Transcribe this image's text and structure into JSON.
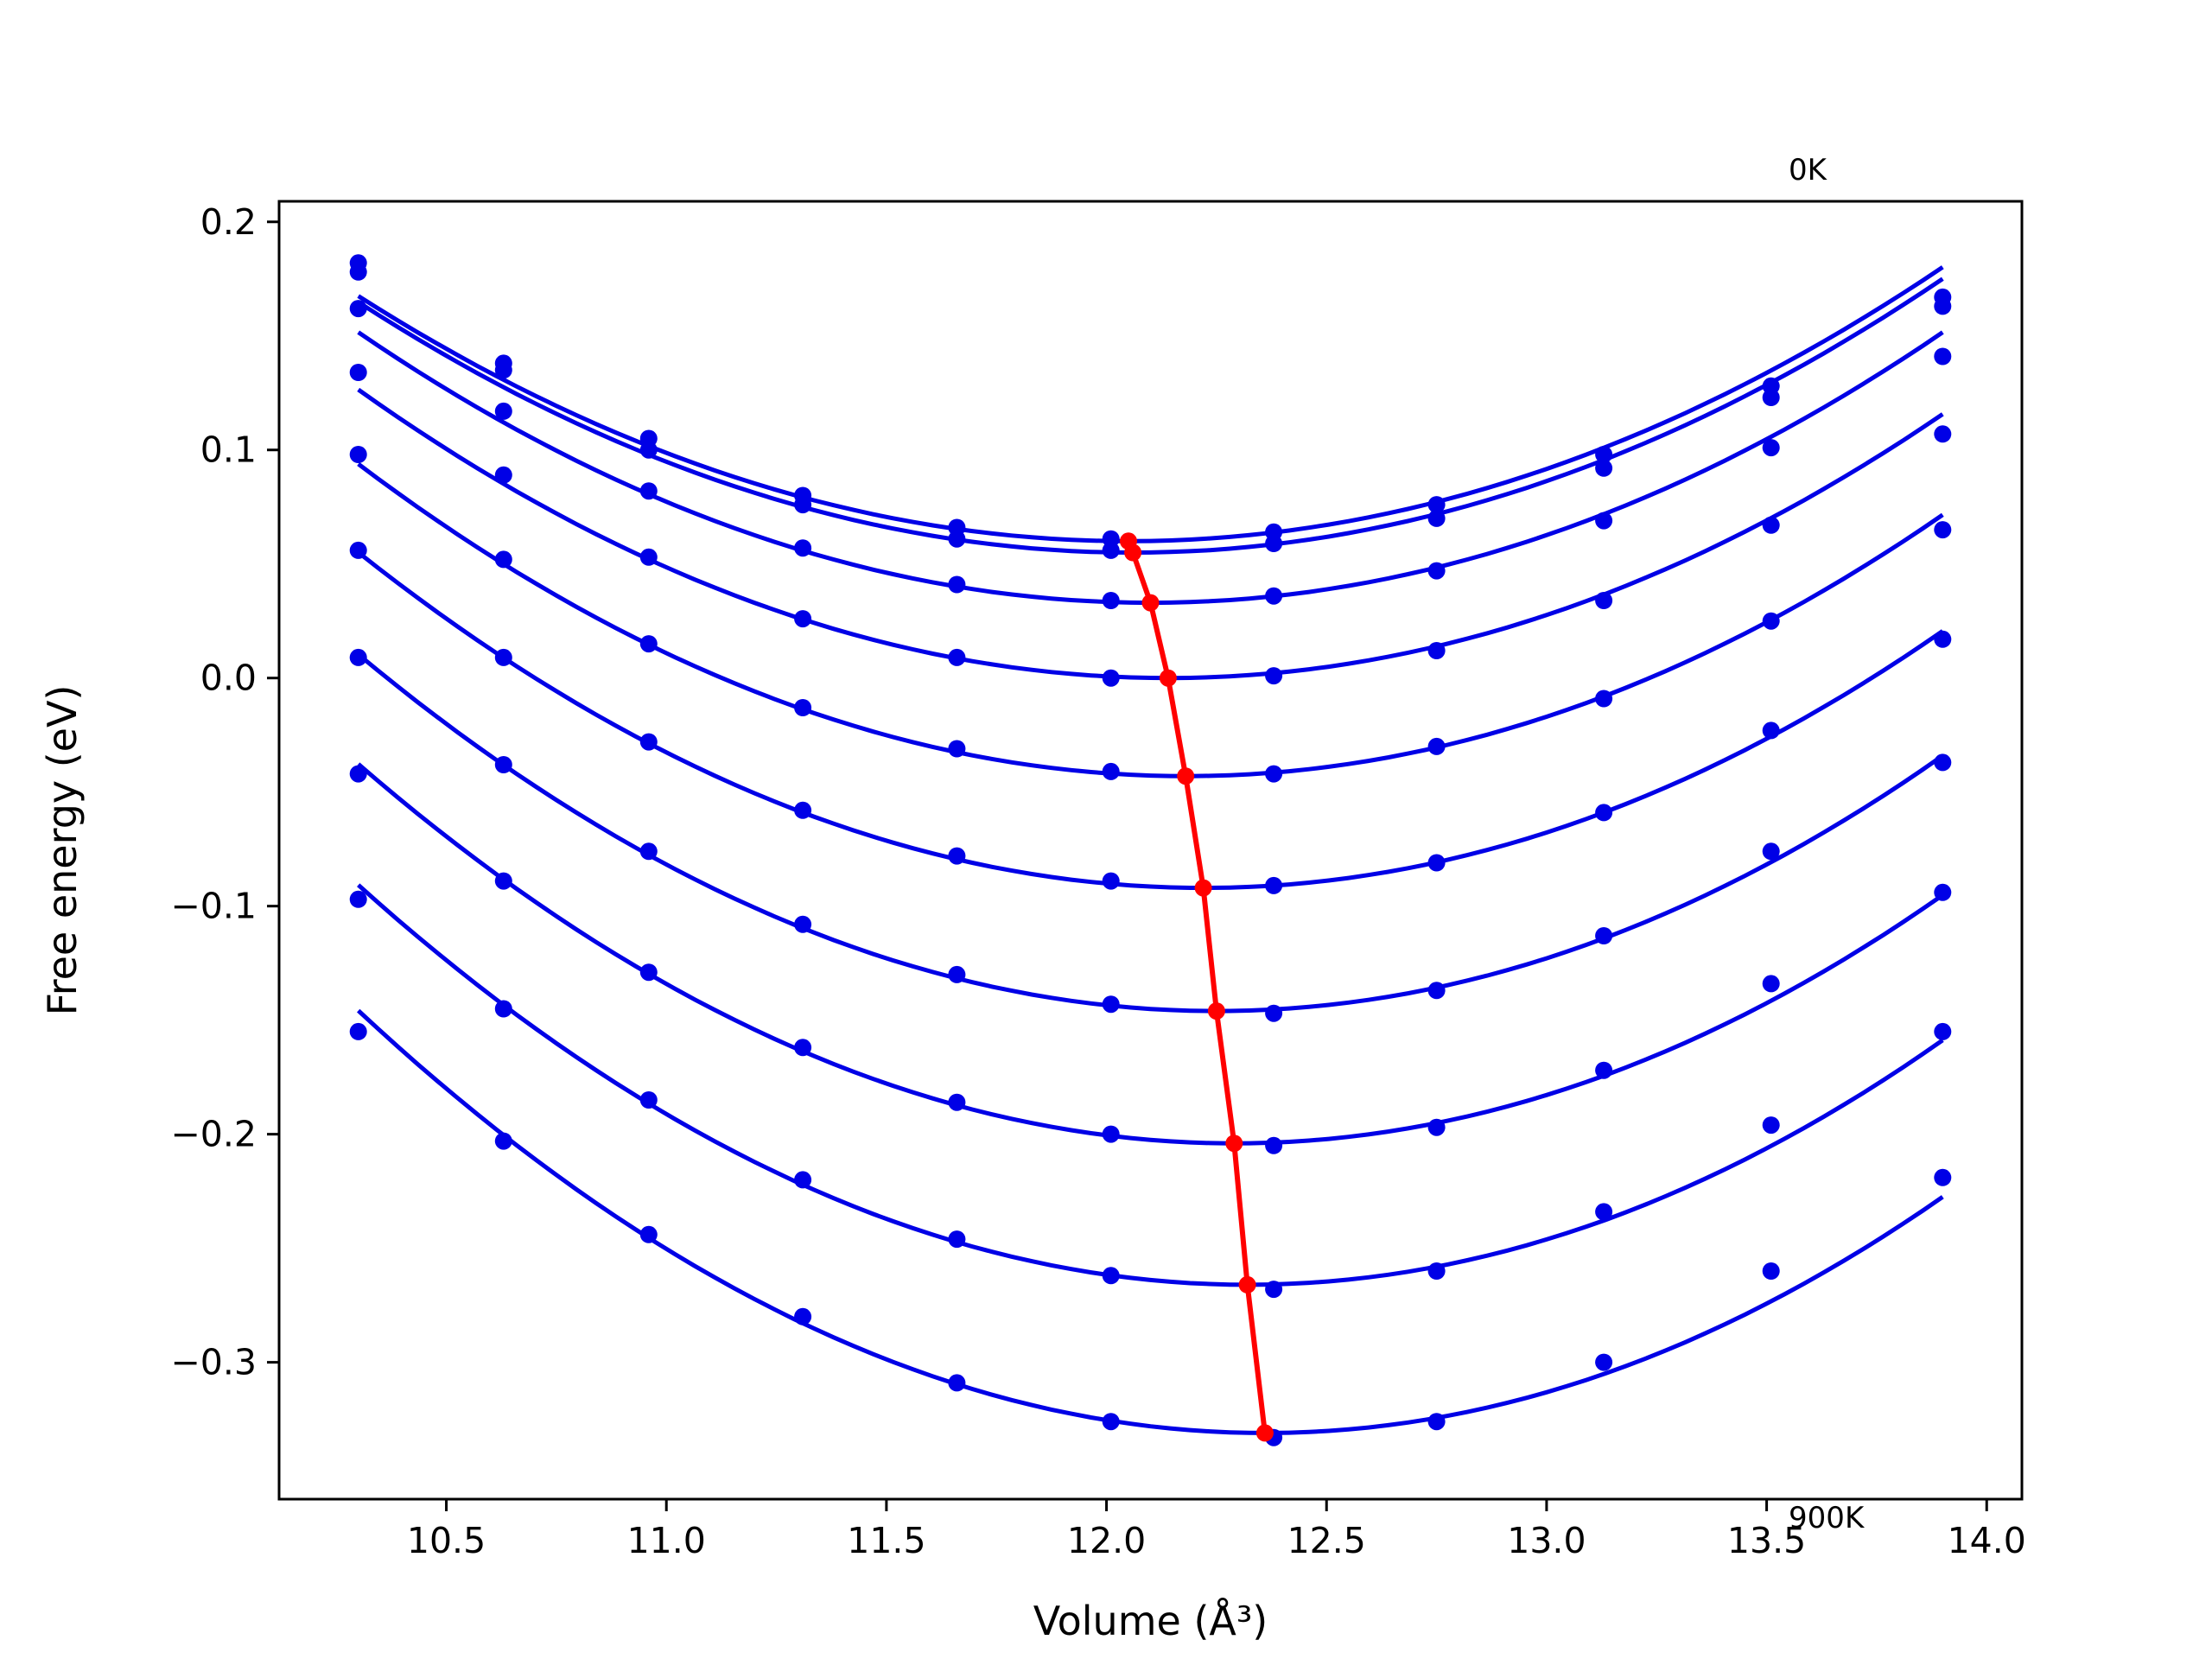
{
  "chart_data": {
    "type": "line",
    "xlabel": "Volume (Å³)",
    "ylabel": "Free energy (eV)",
    "xlim": [
      10.12,
      14.08
    ],
    "ylim": [
      -0.36,
      0.209
    ],
    "xticks": [
      {
        "value": 10.5,
        "label": "10.5"
      },
      {
        "value": 11.0,
        "label": "11.0"
      },
      {
        "value": 11.5,
        "label": "11.5"
      },
      {
        "value": 12.0,
        "label": "12.0"
      },
      {
        "value": 12.5,
        "label": "12.5"
      },
      {
        "value": 13.0,
        "label": "13.0"
      },
      {
        "value": 13.5,
        "label": "13.5"
      },
      {
        "value": 14.0,
        "label": "14.0"
      }
    ],
    "yticks": [
      {
        "value": 0.2,
        "label": "0.2"
      },
      {
        "value": 0.1,
        "label": "0.1"
      },
      {
        "value": 0.0,
        "label": "0.0"
      },
      {
        "value": -0.1,
        "label": "−0.1"
      },
      {
        "value": -0.2,
        "label": "−0.2"
      },
      {
        "value": -0.3,
        "label": "−0.3"
      }
    ],
    "grid": false,
    "annotations": [
      {
        "text": "0K",
        "x": 13.55,
        "y": 0.223
      },
      {
        "text": "900K",
        "x": 13.55,
        "y": -0.368
      }
    ],
    "x": [
      10.3,
      10.63,
      10.96,
      11.31,
      11.66,
      12.01,
      12.38,
      12.75,
      13.13,
      13.51,
      13.9
    ],
    "series": [
      {
        "values": [
          0.182,
          0.138,
          0.105,
          0.08,
          0.066,
          0.061,
          0.064,
          0.076,
          0.098,
          0.128,
          0.167
        ],
        "fit_min": [
          12.05,
          0.06
        ]
      },
      {
        "values": [
          0.178,
          0.135,
          0.1,
          0.076,
          0.061,
          0.056,
          0.059,
          0.07,
          0.092,
          0.123,
          0.163
        ],
        "fit_min": [
          12.06,
          0.055
        ]
      },
      {
        "values": [
          0.162,
          0.117,
          0.082,
          0.057,
          0.041,
          0.034,
          0.036,
          0.047,
          0.069,
          0.101,
          0.141
        ],
        "fit_min": [
          12.1,
          0.033
        ]
      },
      {
        "values": [
          0.134,
          0.089,
          0.053,
          0.026,
          0.009,
          0.0,
          0.001,
          0.012,
          0.034,
          0.067,
          0.107
        ],
        "fit_min": [
          12.14,
          0.0
        ]
      },
      {
        "values": [
          0.098,
          0.052,
          0.015,
          -0.013,
          -0.031,
          -0.041,
          -0.042,
          -0.03,
          -0.009,
          0.025,
          0.065
        ],
        "fit_min": [
          12.18,
          -0.043
        ]
      },
      {
        "values": [
          0.056,
          0.009,
          -0.028,
          -0.058,
          -0.078,
          -0.089,
          -0.091,
          -0.081,
          -0.059,
          -0.023,
          0.017
        ],
        "fit_min": [
          12.22,
          -0.092
        ]
      },
      {
        "values": [
          0.009,
          -0.038,
          -0.076,
          -0.108,
          -0.13,
          -0.143,
          -0.147,
          -0.137,
          -0.113,
          -0.076,
          -0.037
        ],
        "fit_min": [
          12.25,
          -0.146
        ]
      },
      {
        "values": [
          -0.042,
          -0.089,
          -0.129,
          -0.162,
          -0.186,
          -0.2,
          -0.205,
          -0.197,
          -0.172,
          -0.134,
          -0.094
        ],
        "fit_min": [
          12.29,
          -0.204
        ]
      },
      {
        "values": [
          -0.097,
          -0.145,
          -0.185,
          -0.22,
          -0.246,
          -0.262,
          -0.268,
          -0.26,
          -0.234,
          -0.196,
          -0.155
        ],
        "fit_min": [
          12.32,
          -0.266
        ]
      },
      {
        "values": [
          -0.155,
          -0.203,
          -0.244,
          -0.28,
          -0.309,
          -0.326,
          -0.333,
          -0.326,
          -0.3,
          -0.26,
          -0.219
        ],
        "fit_min": [
          12.36,
          -0.331
        ]
      }
    ],
    "minimum_line": {
      "x": [
        12.05,
        12.06,
        12.1,
        12.14,
        12.18,
        12.22,
        12.25,
        12.29,
        12.32,
        12.36
      ],
      "y": [
        0.06,
        0.055,
        0.033,
        0.0,
        -0.043,
        -0.092,
        -0.146,
        -0.204,
        -0.266,
        -0.331
      ]
    },
    "colors": {
      "series": "#0000e6",
      "minimum_line": "#ff0000",
      "axes": "#000000"
    }
  }
}
